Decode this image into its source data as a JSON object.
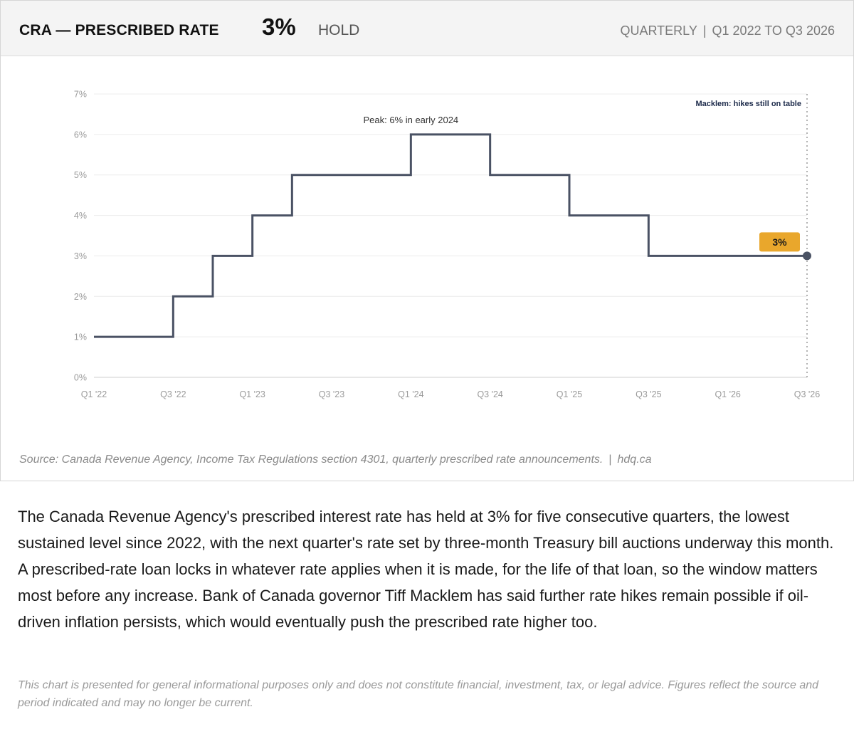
{
  "header": {
    "title": "CRA — PRESCRIBED RATE",
    "current_value": "3%",
    "status": "HOLD",
    "frequency": "QUARTERLY",
    "period": "Q1 2022 TO Q3 2026",
    "separator": "|"
  },
  "chart_data": {
    "type": "line",
    "step": true,
    "unit": "%",
    "x": [
      "Q1 '22",
      "Q2 '22",
      "Q3 '22",
      "Q4 '22",
      "Q1 '23",
      "Q2 '23",
      "Q3 '23",
      "Q4 '23",
      "Q1 '24",
      "Q2 '24",
      "Q3 '24",
      "Q4 '24",
      "Q1 '25",
      "Q2 '25",
      "Q3 '25",
      "Q4 '25",
      "Q1 '26",
      "Q2 '26",
      "Q3 '26"
    ],
    "values": [
      1,
      1,
      2,
      3,
      4,
      5,
      5,
      5,
      6,
      6,
      5,
      5,
      4,
      4,
      3,
      3,
      3,
      3,
      3
    ],
    "xticks": [
      "Q1 '22",
      "Q3 '22",
      "Q1 '23",
      "Q3 '23",
      "Q1 '24",
      "Q3 '24",
      "Q1 '25",
      "Q3 '25",
      "Q1 '26",
      "Q3 '26"
    ],
    "yticks": [
      "0%",
      "1%",
      "2%",
      "3%",
      "4%",
      "5%",
      "6%",
      "7%"
    ],
    "ylim": [
      0,
      7
    ],
    "grid": true,
    "line_color": "#4a5264",
    "badge_color": "#e9a72c",
    "annotations": {
      "peak": {
        "text": "Peak: 6% in early 2024",
        "x": "Q1 '24",
        "y": 6
      },
      "marker": {
        "text": "Macklem: hikes still on table",
        "x": "Q3 '26"
      },
      "last_value": {
        "text": "3%",
        "x": "Q3 '26",
        "y": 3
      }
    }
  },
  "source": {
    "text": "Source: Canada Revenue Agency, Income Tax Regulations section 4301, quarterly prescribed rate announcements.",
    "separator": "|",
    "site": "hdq.ca"
  },
  "body": "The Canada Revenue Agency's prescribed interest rate has held at 3% for five consecutive quarters, the lowest sustained level since 2022, with the next quarter's rate set by three-month Treasury bill auctions underway this month. A prescribed-rate loan locks in whatever rate applies when it is made, for the life of that loan, so the window matters most before any increase. Bank of Canada governor Tiff Macklem has said further rate hikes remain possible if oil-driven inflation persists, which would eventually push the prescribed rate higher too.",
  "disclaimer": "This chart is presented for general informational purposes only and does not constitute financial, investment, tax, or legal advice. Figures reflect the source and period indicated and may no longer be current."
}
